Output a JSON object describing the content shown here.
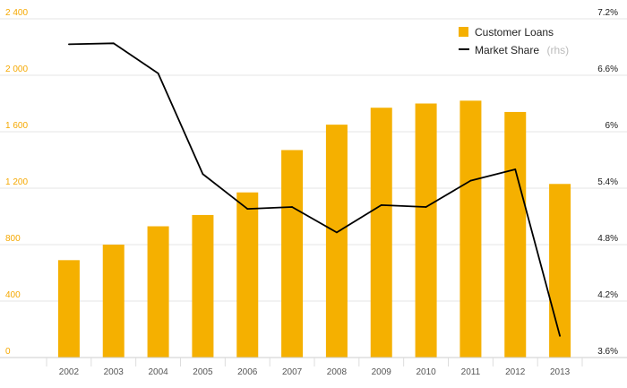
{
  "chart_data": {
    "type": "bar+line",
    "title": "",
    "xlabel": "",
    "categories": [
      "2002",
      "2003",
      "2004",
      "2005",
      "2006",
      "2007",
      "2008",
      "2009",
      "2010",
      "2011",
      "2012",
      "2013"
    ],
    "series": [
      {
        "name": "Customer Loans",
        "type": "bar",
        "axis": "left",
        "color": "#f5b000",
        "values": [
          690,
          800,
          930,
          1010,
          1170,
          1470,
          1650,
          1770,
          1800,
          1820,
          1740,
          1230
        ]
      },
      {
        "name": "Market Share",
        "legend_suffix": "(rhs)",
        "type": "line",
        "axis": "right",
        "color": "#000000",
        "values": [
          6.93,
          6.94,
          6.62,
          5.55,
          5.18,
          5.2,
          4.93,
          5.22,
          5.2,
          5.48,
          5.6,
          3.83
        ]
      }
    ],
    "y_left": {
      "min": 0,
      "max": 2400,
      "ticks": [
        0,
        400,
        800,
        1200,
        1600,
        2000,
        2400
      ],
      "tick_labels": [
        "0",
        "400",
        "800",
        "1 200",
        "1 600",
        "2 000",
        "2 400"
      ],
      "color": "#f5a800"
    },
    "y_right": {
      "min": 3.6,
      "max": 7.2,
      "ticks": [
        3.6,
        4.2,
        4.8,
        5.4,
        6.0,
        6.6,
        7.2
      ],
      "tick_labels": [
        "3.6%",
        "4.2%",
        "4.8%",
        "5.4%",
        "6%",
        "6.6%",
        "7.2%"
      ],
      "color": "#1a1a1a"
    },
    "grid": true,
    "legend": "top-right"
  }
}
